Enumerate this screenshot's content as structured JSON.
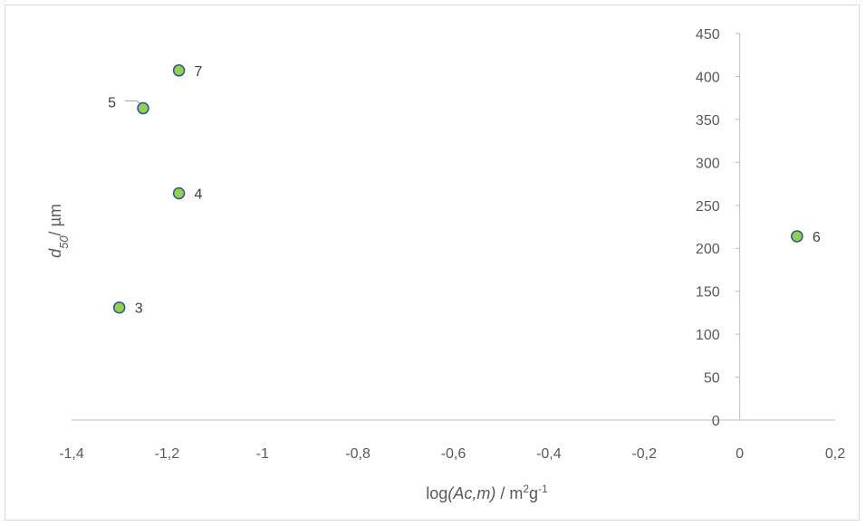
{
  "chart_data": {
    "type": "scatter",
    "xlabel": {
      "pre": "log",
      "italic": "(Ac,m)",
      "post": " / m",
      "sup1": "2",
      "mid": "g",
      "sup2": "-1"
    },
    "ylabel": {
      "italic": "d",
      "sub": "50",
      "post": "/ µm"
    },
    "xlim": [
      -1.4,
      0.2
    ],
    "ylim": [
      0,
      450
    ],
    "x_ticks": [
      -1.4,
      -1.2,
      -1,
      -0.8,
      -0.6,
      -0.4,
      -0.2,
      0,
      0.2
    ],
    "x_tick_labels": [
      "-1,4",
      "-1,2",
      "-1",
      "-0,8",
      "-0,6",
      "-0,4",
      "-0,2",
      "0",
      "0,2"
    ],
    "y_ticks": [
      0,
      50,
      100,
      150,
      200,
      250,
      300,
      350,
      400,
      450
    ],
    "y_tick_labels": [
      "0",
      "50",
      "100",
      "150",
      "200",
      "250",
      "300",
      "350",
      "400",
      "450"
    ],
    "grid": false,
    "marker_fill": "#92d050",
    "marker_stroke": "#2f5597",
    "axis_color": "#bfbfbf",
    "points": [
      {
        "label": "3",
        "x": -1.3,
        "y": 131
      },
      {
        "label": "4",
        "x": -1.175,
        "y": 264
      },
      {
        "label": "5",
        "x": -1.25,
        "y": 363
      },
      {
        "label": "6",
        "x": 0.12,
        "y": 214
      },
      {
        "label": "7",
        "x": -1.175,
        "y": 407
      }
    ]
  }
}
